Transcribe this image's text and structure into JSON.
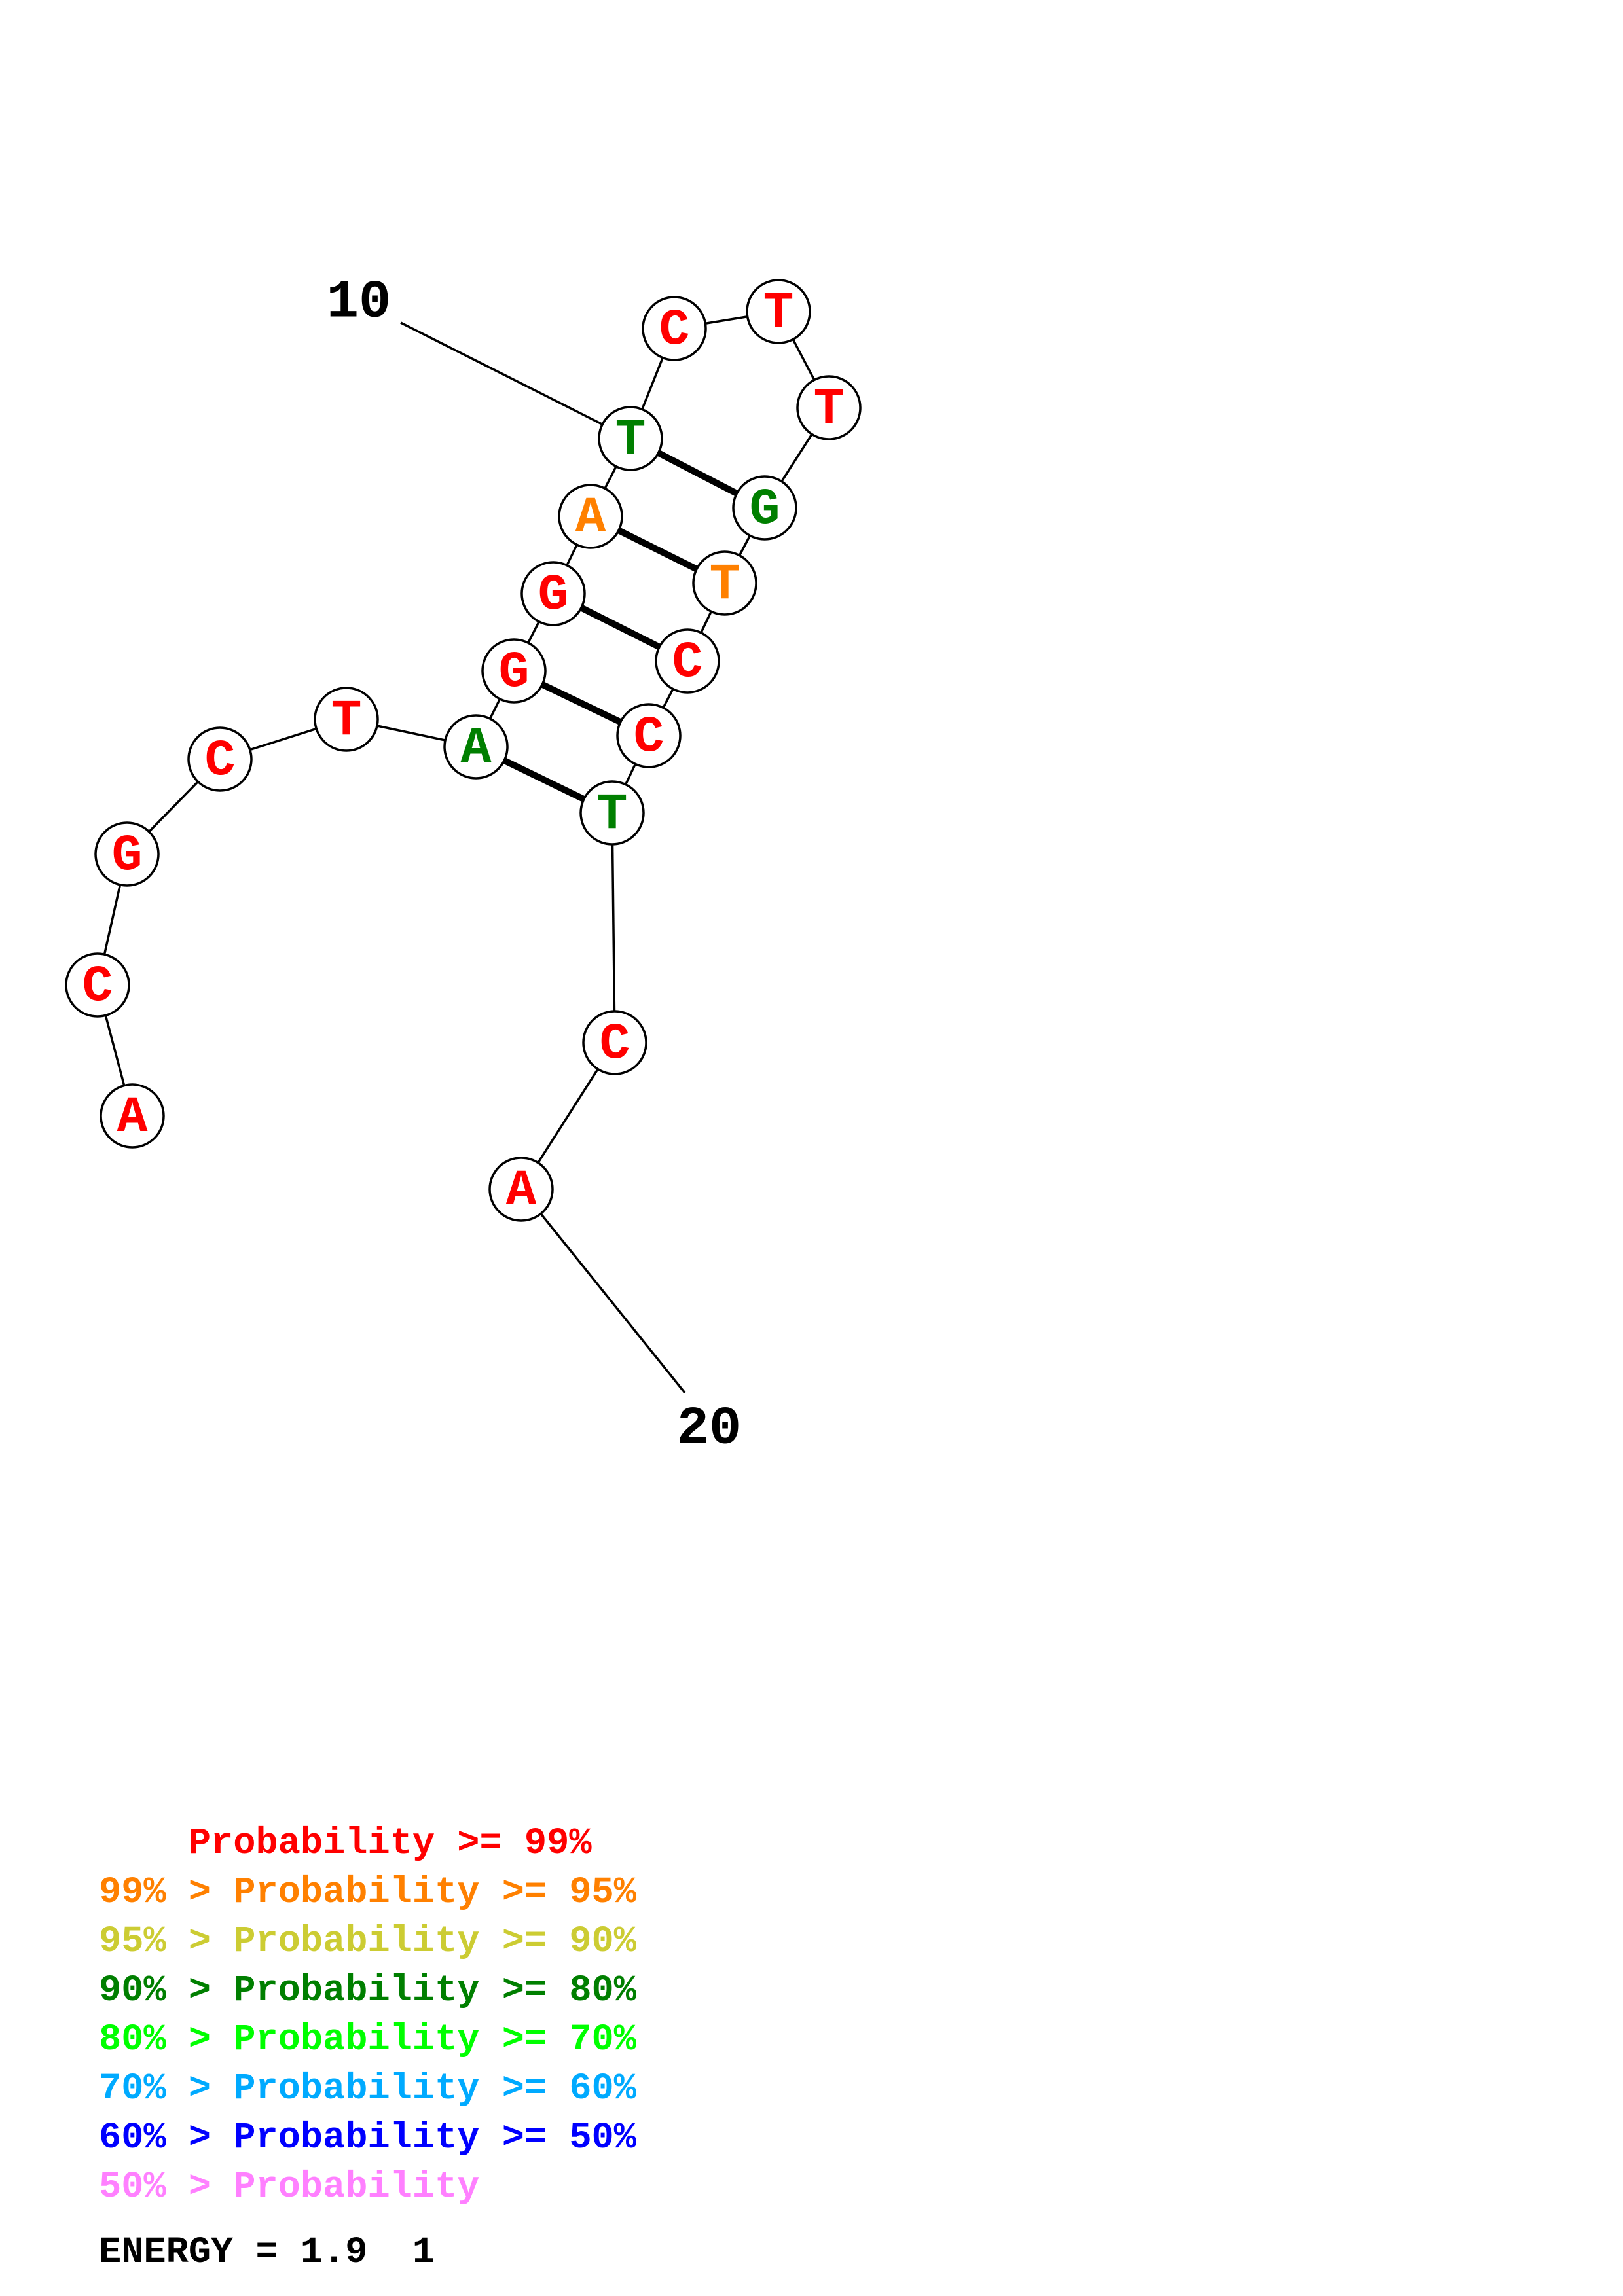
{
  "colors": {
    "p99": "#ff0000",
    "p95": "#ff8000",
    "p90": "#cccc33",
    "p80": "#007f00",
    "p70": "#00ff00",
    "p60": "#00aaff",
    "p50": "#0000ff",
    "plow": "#ff80ff",
    "line": "#000000",
    "node_fill": "#ffffff"
  },
  "nucleotides": [
    {
      "index": 1,
      "base": "A",
      "prob_class": "p99"
    },
    {
      "index": 2,
      "base": "C",
      "prob_class": "p99"
    },
    {
      "index": 3,
      "base": "G",
      "prob_class": "p99"
    },
    {
      "index": 4,
      "base": "C",
      "prob_class": "p99"
    },
    {
      "index": 5,
      "base": "T",
      "prob_class": "p99"
    },
    {
      "index": 6,
      "base": "A",
      "prob_class": "p80"
    },
    {
      "index": 7,
      "base": "G",
      "prob_class": "p99"
    },
    {
      "index": 8,
      "base": "G",
      "prob_class": "p99"
    },
    {
      "index": 9,
      "base": "A",
      "prob_class": "p95"
    },
    {
      "index": 10,
      "base": "T",
      "prob_class": "p80"
    },
    {
      "index": 11,
      "base": "C",
      "prob_class": "p99"
    },
    {
      "index": 12,
      "base": "T",
      "prob_class": "p99"
    },
    {
      "index": 13,
      "base": "T",
      "prob_class": "p99"
    },
    {
      "index": 14,
      "base": "G",
      "prob_class": "p80"
    },
    {
      "index": 15,
      "base": "T",
      "prob_class": "p95"
    },
    {
      "index": 16,
      "base": "C",
      "prob_class": "p99"
    },
    {
      "index": 17,
      "base": "C",
      "prob_class": "p99"
    },
    {
      "index": 18,
      "base": "T",
      "prob_class": "p80"
    },
    {
      "index": 19,
      "base": "C",
      "prob_class": "p99"
    },
    {
      "index": 20,
      "base": "A",
      "prob_class": "p99"
    }
  ],
  "base_pairs": [
    [
      6,
      18
    ],
    [
      7,
      17
    ],
    [
      8,
      16
    ],
    [
      9,
      15
    ],
    [
      10,
      14
    ]
  ],
  "position_labels": [
    {
      "nucleotide": 10,
      "text": "10"
    },
    {
      "nucleotide": 20,
      "text": "20"
    }
  ],
  "legend": [
    {
      "prefix": "    ",
      "label": "Probability >= 99%",
      "class": "p99"
    },
    {
      "prefix": "99% > ",
      "label": "Probability >= 95%",
      "class": "p95"
    },
    {
      "prefix": "95% > ",
      "label": "Probability >= 90%",
      "class": "p90"
    },
    {
      "prefix": "90% > ",
      "label": "Probability >= 80%",
      "class": "p80"
    },
    {
      "prefix": "80% > ",
      "label": "Probability >= 70%",
      "class": "p70"
    },
    {
      "prefix": "70% > ",
      "label": "Probability >= 60%",
      "class": "p60"
    },
    {
      "prefix": "60% > ",
      "label": "Probability >= 50%",
      "class": "p50"
    },
    {
      "prefix": "50% > ",
      "label": "Probability",
      "class": "plow"
    }
  ],
  "energy": "ENERGY = 1.9  1"
}
